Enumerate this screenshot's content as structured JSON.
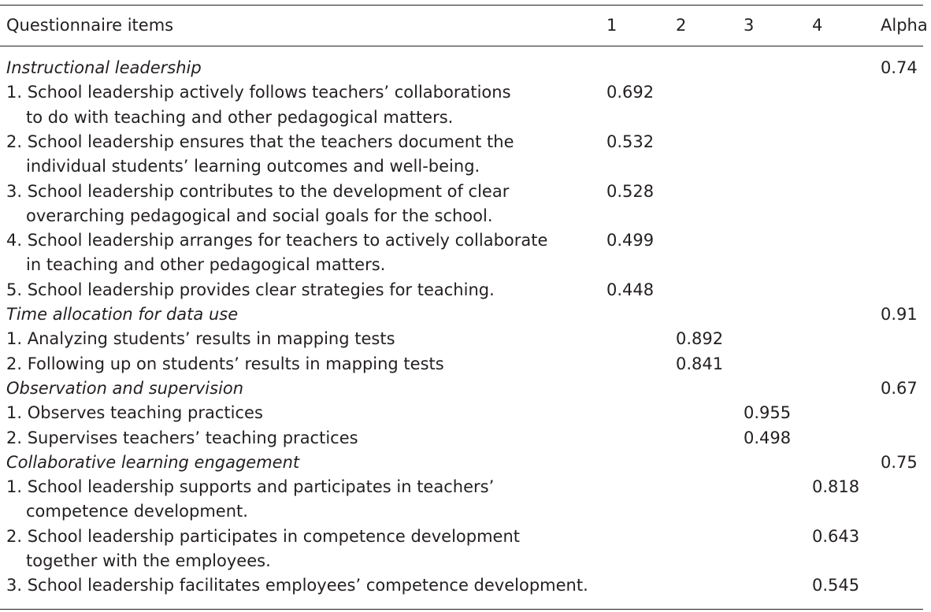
{
  "table": {
    "headers": [
      "Questionnaire items",
      "1",
      "2",
      "3",
      "4",
      "Alpha"
    ],
    "rows": [
      {
        "kind": "section",
        "label": "Instructional leadership",
        "alpha": "0.74"
      },
      {
        "kind": "item",
        "lines": [
          "1. School leadership actively follows teachers’ collaborations",
          "to do with teaching and other pedagogical matters."
        ],
        "col": 1,
        "value": "0.692"
      },
      {
        "kind": "item",
        "lines": [
          "2. School leadership ensures that the teachers document the",
          "individual students’ learning outcomes and well-being."
        ],
        "col": 1,
        "value": "0.532"
      },
      {
        "kind": "item",
        "lines": [
          "3. School leadership contributes to the development of clear",
          "overarching pedagogical and social goals for the school."
        ],
        "col": 1,
        "value": "0.528"
      },
      {
        "kind": "item",
        "lines": [
          "4. School leadership arranges for teachers to actively collaborate",
          "in teaching and other pedagogical matters."
        ],
        "col": 1,
        "value": "0.499"
      },
      {
        "kind": "item",
        "lines": [
          "5. School leadership provides clear strategies for teaching."
        ],
        "col": 1,
        "value": "0.448"
      },
      {
        "kind": "section",
        "label": "Time allocation for data use",
        "alpha": "0.91"
      },
      {
        "kind": "item",
        "lines": [
          "1. Analyzing students’ results in mapping tests"
        ],
        "col": 2,
        "value": "0.892"
      },
      {
        "kind": "item",
        "lines": [
          "2. Following up on students’ results in mapping tests"
        ],
        "col": 2,
        "value": "0.841"
      },
      {
        "kind": "section",
        "label": "Observation and supervision",
        "alpha": "0.67"
      },
      {
        "kind": "item",
        "lines": [
          "1. Observes teaching practices"
        ],
        "col": 3,
        "value": "0.955"
      },
      {
        "kind": "item",
        "lines": [
          "2. Supervises teachers’ teaching practices"
        ],
        "col": 3,
        "value": "0.498"
      },
      {
        "kind": "section",
        "label": "Collaborative learning engagement",
        "alpha": "0.75"
      },
      {
        "kind": "item",
        "lines": [
          "1. School leadership supports and participates in teachers’",
          "competence development."
        ],
        "col": 4,
        "value": "0.818"
      },
      {
        "kind": "item",
        "lines": [
          "2. School leadership participates in competence development",
          "together with the employees."
        ],
        "col": 4,
        "value": "0.643"
      },
      {
        "kind": "item",
        "lines": [
          "3. School leadership facilitates employees’ competence development."
        ],
        "col": 4,
        "value": "0.545"
      }
    ]
  }
}
